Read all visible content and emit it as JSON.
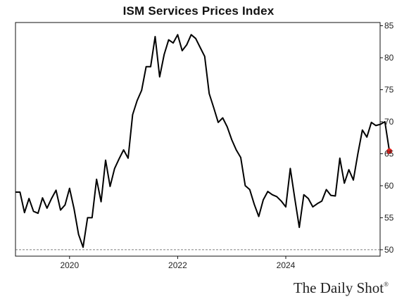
{
  "chart_data": {
    "type": "line",
    "title": "ISM Services Prices Index",
    "xlabel": "",
    "ylabel": "",
    "ylim": [
      49,
      85.5
    ],
    "xlim": [
      "2019-01",
      "2025-09"
    ],
    "y_ticks": [
      50,
      55,
      60,
      65,
      70,
      75,
      80,
      85
    ],
    "x_ticks": [
      {
        "x": "2020-01",
        "label": "2020"
      },
      {
        "x": "2022-01",
        "label": "2022"
      },
      {
        "x": "2024-01",
        "label": "2024"
      }
    ],
    "reference_line": {
      "y": 50,
      "style": "dashed"
    },
    "grid": false,
    "series": [
      {
        "color": "#000000",
        "points": [
          [
            "2019-01",
            59.0
          ],
          [
            "2019-02",
            59.0
          ],
          [
            "2019-03",
            55.8
          ],
          [
            "2019-04",
            58.0
          ],
          [
            "2019-05",
            56.0
          ],
          [
            "2019-06",
            55.7
          ],
          [
            "2019-07",
            58.1
          ],
          [
            "2019-08",
            56.5
          ],
          [
            "2019-09",
            58.0
          ],
          [
            "2019-10",
            59.3
          ],
          [
            "2019-11",
            56.2
          ],
          [
            "2019-12",
            57.0
          ],
          [
            "2020-01",
            59.6
          ],
          [
            "2020-02",
            56.4
          ],
          [
            "2020-03",
            52.4
          ],
          [
            "2020-04",
            50.4
          ],
          [
            "2020-05",
            55.0
          ],
          [
            "2020-06",
            55.0
          ],
          [
            "2020-07",
            61.0
          ],
          [
            "2020-08",
            57.5
          ],
          [
            "2020-09",
            64.0
          ],
          [
            "2020-10",
            59.9
          ],
          [
            "2020-11",
            62.7
          ],
          [
            "2020-12",
            64.2
          ],
          [
            "2021-01",
            65.6
          ],
          [
            "2021-02",
            64.3
          ],
          [
            "2021-03",
            71.1
          ],
          [
            "2021-04",
            73.3
          ],
          [
            "2021-05",
            74.9
          ],
          [
            "2021-06",
            78.6
          ],
          [
            "2021-07",
            78.6
          ],
          [
            "2021-08",
            83.3
          ],
          [
            "2021-09",
            77.0
          ],
          [
            "2021-10",
            80.5
          ],
          [
            "2021-11",
            82.8
          ],
          [
            "2021-12",
            82.3
          ],
          [
            "2022-01",
            83.6
          ],
          [
            "2022-02",
            81.1
          ],
          [
            "2022-03",
            82.0
          ],
          [
            "2022-04",
            83.6
          ],
          [
            "2022-05",
            83.0
          ],
          [
            "2022-06",
            81.6
          ],
          [
            "2022-07",
            80.2
          ],
          [
            "2022-08",
            74.4
          ],
          [
            "2022-09",
            72.2
          ],
          [
            "2022-10",
            69.9
          ],
          [
            "2022-11",
            70.6
          ],
          [
            "2022-12",
            69.2
          ],
          [
            "2023-01",
            67.2
          ],
          [
            "2023-02",
            65.6
          ],
          [
            "2023-03",
            64.4
          ],
          [
            "2023-04",
            60.0
          ],
          [
            "2023-05",
            59.4
          ],
          [
            "2023-06",
            57.1
          ],
          [
            "2023-07",
            55.2
          ],
          [
            "2023-08",
            57.8
          ],
          [
            "2023-09",
            59.1
          ],
          [
            "2023-10",
            58.6
          ],
          [
            "2023-11",
            58.3
          ],
          [
            "2023-12",
            57.6
          ],
          [
            "2024-01",
            56.7
          ],
          [
            "2024-02",
            62.7
          ],
          [
            "2024-03",
            58.0
          ],
          [
            "2024-04",
            53.5
          ],
          [
            "2024-05",
            58.6
          ],
          [
            "2024-06",
            58.0
          ],
          [
            "2024-07",
            56.7
          ],
          [
            "2024-08",
            57.2
          ],
          [
            "2024-09",
            57.6
          ],
          [
            "2024-10",
            59.4
          ],
          [
            "2024-11",
            58.5
          ],
          [
            "2024-12",
            58.4
          ],
          [
            "2025-01",
            64.3
          ],
          [
            "2025-02",
            60.4
          ],
          [
            "2025-03",
            62.5
          ],
          [
            "2025-04",
            60.9
          ],
          [
            "2025-05",
            65.0
          ],
          [
            "2025-06",
            68.7
          ],
          [
            "2025-07",
            67.6
          ],
          [
            "2025-08",
            69.9
          ],
          [
            "2025-09",
            69.4
          ],
          [
            "2025-10",
            69.6
          ],
          [
            "2025-11",
            70.0
          ],
          [
            "2025-12",
            65.4
          ]
        ]
      }
    ],
    "last_point_marker_color": "#e0201b"
  },
  "brand": {
    "name": "The Daily Shot",
    "mark": "®"
  }
}
